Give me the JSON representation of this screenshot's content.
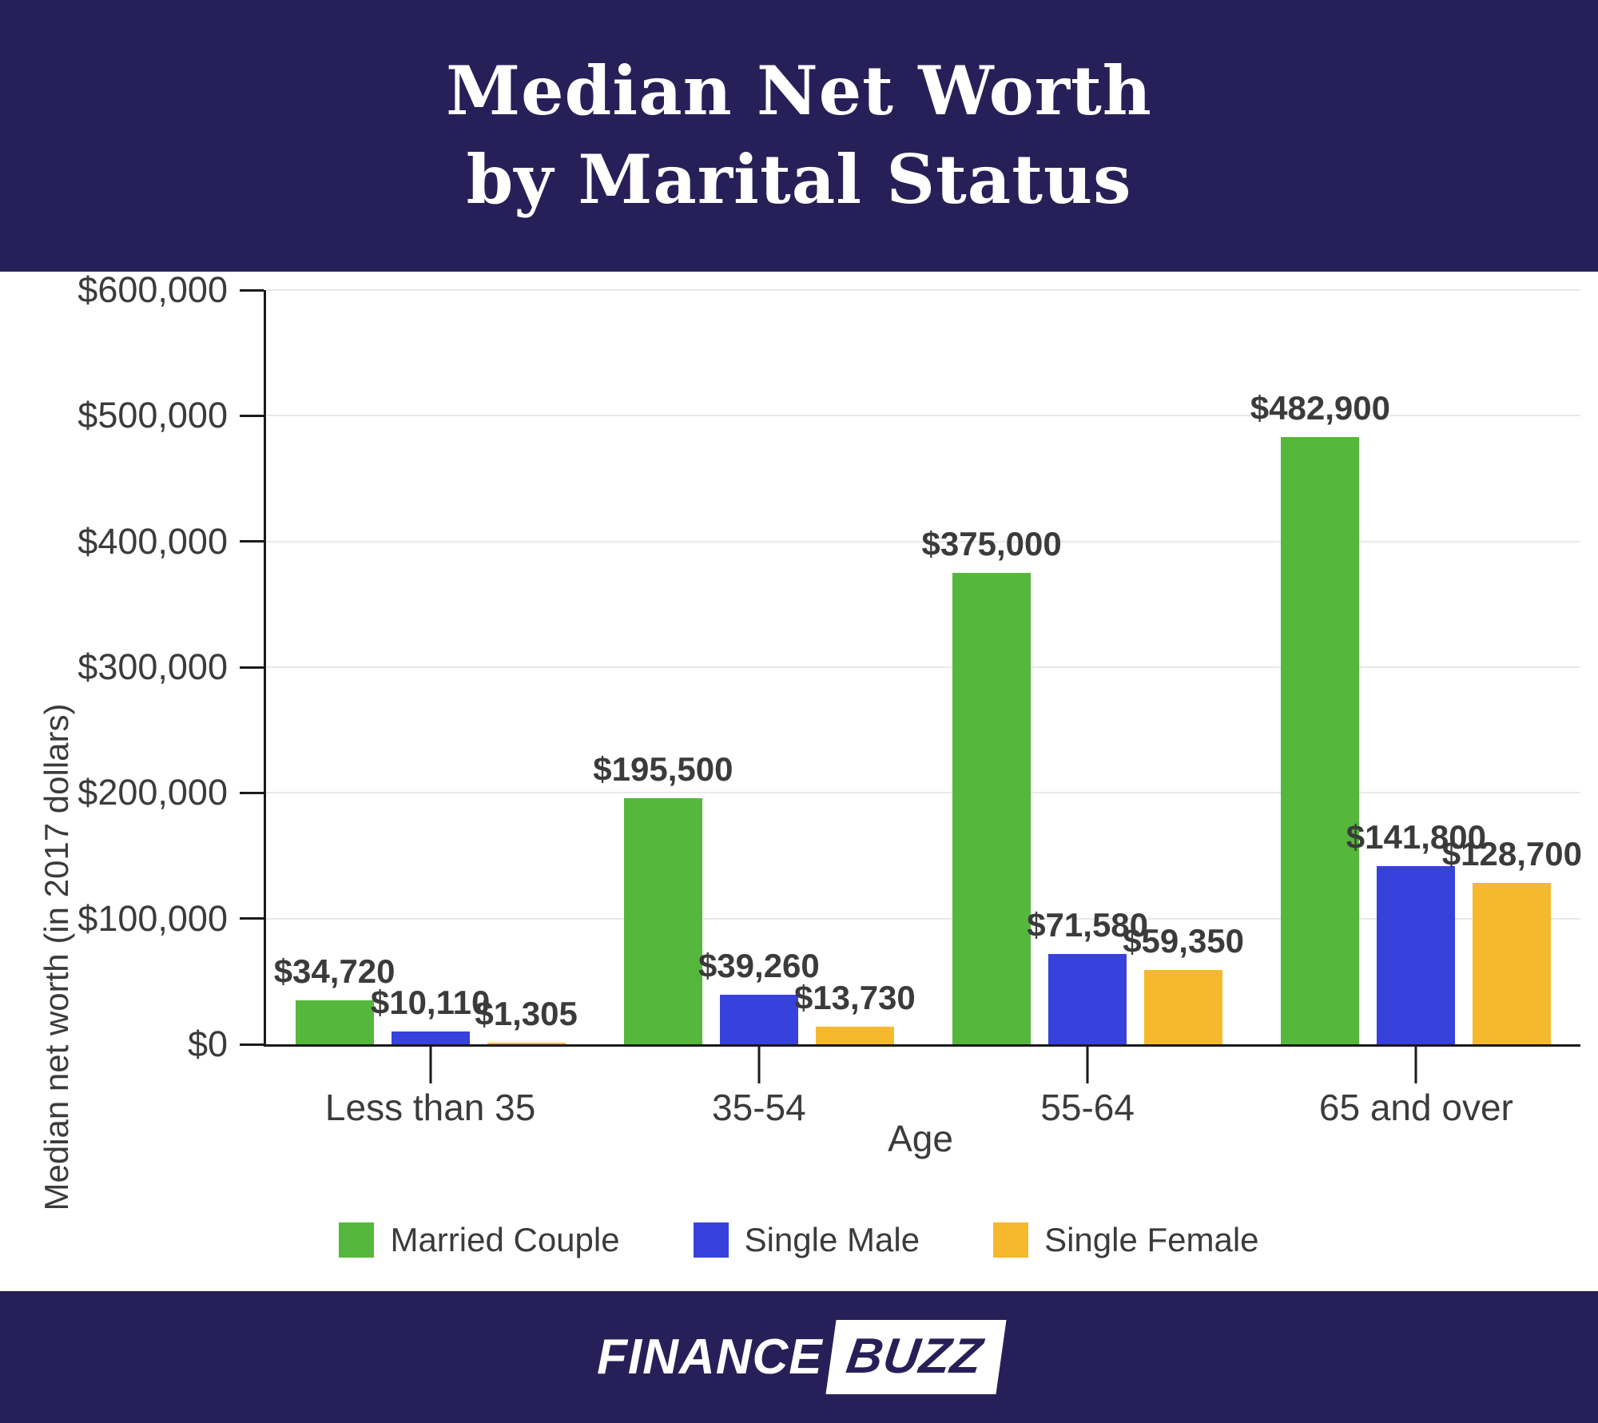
{
  "header": {
    "title_line1": "Median Net Worth",
    "title_line2": "by Marital Status"
  },
  "chart_data": {
    "type": "bar",
    "title": "Median Net Worth by Marital Status",
    "categories": [
      "Less than 35",
      "35-54",
      "55-64",
      "65 and over"
    ],
    "series": [
      {
        "name": "Married Couple",
        "color": "#55b83c",
        "values": [
          34720,
          195500,
          375000,
          482900
        ],
        "value_labels": [
          "$34,720",
          "$195,500",
          "$375,000",
          "$482,900"
        ]
      },
      {
        "name": "Single Male",
        "color": "#3742dc",
        "values": [
          10110,
          39260,
          71580,
          141800
        ],
        "value_labels": [
          "$10,110",
          "$39,260",
          "$71,580",
          "$141,800"
        ]
      },
      {
        "name": "Single Female",
        "color": "#f6b92d",
        "values": [
          1305,
          13730,
          59350,
          128700
        ],
        "value_labels": [
          "$1,305",
          "$13,730",
          "$59,350",
          "$128,700"
        ]
      }
    ],
    "xlabel": "Age",
    "ylabel": "Median net worth (in 2017 dollars)",
    "ylim": [
      0,
      600000
    ],
    "ytick_labels": [
      "$0",
      "$100,000",
      "$200,000",
      "$300,000",
      "$400,000",
      "$500,000",
      "$600,000"
    ],
    "grid": true,
    "legend_position": "bottom"
  },
  "footer": {
    "logo_part1": "FINANCE",
    "logo_part2": "BUZZ"
  },
  "colors": {
    "band_bg": "#272058",
    "married_couple": "#55b83c",
    "single_male": "#3742dc",
    "single_female": "#f6b92d",
    "axis_text": "#3b3b3b",
    "gridline": "#e8e8e8",
    "title_text": "#ffffff"
  }
}
